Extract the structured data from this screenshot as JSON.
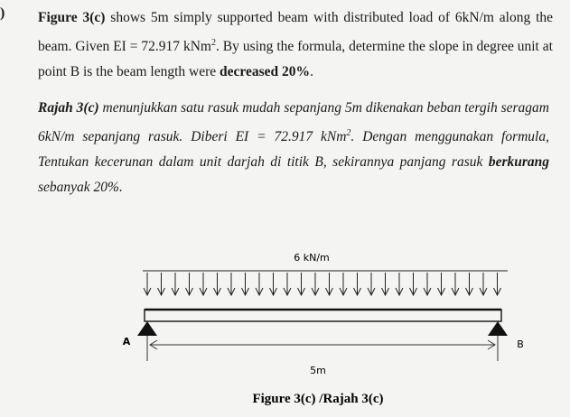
{
  "marker": ")",
  "paragraphs": [
    {
      "italic": false,
      "segments": [
        {
          "text": "Figure 3(c)",
          "bold": true
        },
        {
          "text": " shows 5m simply supported beam with distributed load of 6kN/m along the beam. Given EI = 72.917 kNm",
          "bold": false
        },
        {
          "text": "2",
          "bold": false,
          "sup": true
        },
        {
          "text": ". By using the formula, determine the slope in degree unit at point B is the beam length were ",
          "bold": false
        },
        {
          "text": "decreased 20%",
          "bold": true
        },
        {
          "text": ".",
          "bold": false
        }
      ]
    },
    {
      "italic": true,
      "segments": [
        {
          "text": "Rajah 3(c)",
          "bold": true
        },
        {
          "text": " menunjukkan satu rasuk mudah sepanjang 5m dikenakan beban tergih seragam 6kN/m sepanjang rasuk. Diberi EI = 72.917 kNm",
          "bold": false
        },
        {
          "text": "2",
          "bold": false,
          "sup": true
        },
        {
          "text": ". Dengan menggunakan formula, Tentukan kecerunan dalam unit darjah di titik B, sekirannya panjang rasuk ",
          "bold": false
        },
        {
          "text": "berkurang",
          "bold": true
        },
        {
          "text": " sebanyak 20%.",
          "bold": false
        }
      ]
    }
  ],
  "diagram": {
    "load_label": "6 kN/m",
    "support_a": "A",
    "support_b": "B",
    "length_label": "5m"
  },
  "caption": "Figure 3(c) /Rajah 3(c)"
}
